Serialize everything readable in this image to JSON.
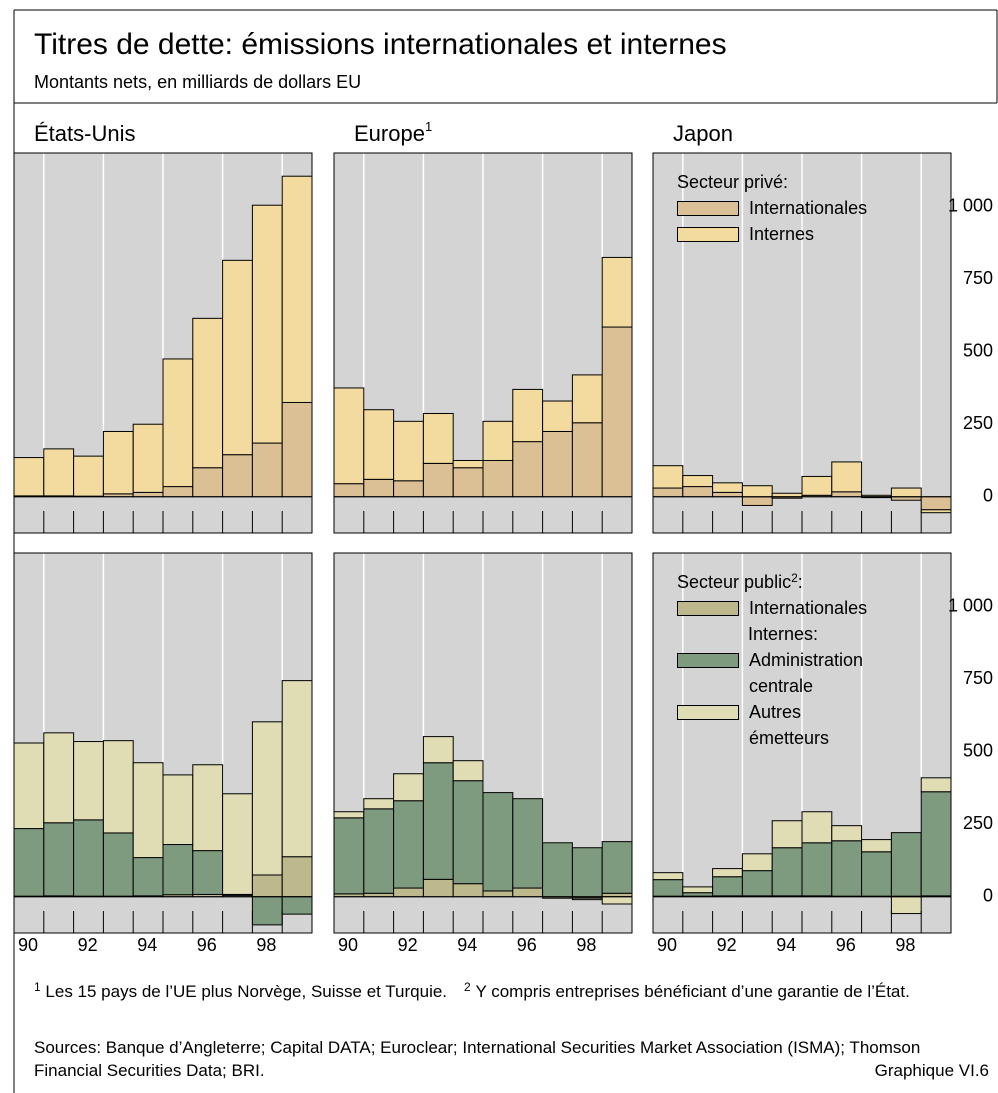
{
  "header": {
    "title": "Titres de dette: émissions internationales et internes",
    "subtitle": "Montants nets, en milliards de dollars EU"
  },
  "chart_data": [
    {
      "type": "bar",
      "stacked": true,
      "title": "États-Unis",
      "ylim": [
        -125,
        1185
      ],
      "series": [
        {
          "color": "#dcc095",
          "values": [
            3,
            3,
            2,
            10,
            15,
            35,
            100,
            145,
            185,
            325
          ]
        },
        {
          "color": "#f3dba0",
          "values": [
            132,
            162,
            138,
            215,
            235,
            440,
            515,
            670,
            820,
            780
          ]
        }
      ]
    },
    {
      "type": "bar",
      "stacked": true,
      "title": {
        "text": "Europe",
        "note": "1"
      },
      "ylim": [
        -125,
        1185
      ],
      "series": [
        {
          "color": "#dcc095",
          "values": [
            45,
            60,
            55,
            115,
            100,
            125,
            190,
            225,
            255,
            585
          ]
        },
        {
          "color": "#f3dba0",
          "values": [
            330,
            240,
            205,
            172,
            25,
            135,
            180,
            105,
            165,
            240
          ]
        }
      ]
    },
    {
      "type": "bar",
      "stacked": true,
      "title": "Japon",
      "ylim": [
        -125,
        1185
      ],
      "yticks": [
        0,
        250,
        500,
        750,
        {
          "value": 1000,
          "label": "1 000"
        }
      ],
      "legend_title": "Secteur privé:",
      "series": [
        {
          "name": "Internationales",
          "color": "#dcc095",
          "values": [
            30,
            35,
            15,
            -30,
            -5,
            5,
            17,
            -3,
            -12,
            -45
          ]
        },
        {
          "name": "Internes",
          "color": "#f3dba0",
          "values": [
            77,
            38,
            33,
            38,
            12,
            65,
            103,
            5,
            30,
            -10
          ]
        }
      ]
    },
    {
      "type": "bar",
      "stacked": true,
      "ylim": [
        -125,
        1185
      ],
      "categories": [
        "90",
        null,
        "92",
        null,
        "94",
        null,
        "96",
        null,
        "98",
        null
      ],
      "series": [
        {
          "color": "#bdb98c",
          "values": [
            2,
            3,
            2,
            2,
            3,
            7,
            8,
            5,
            75,
            138
          ]
        },
        {
          "color": "#7e9a7f",
          "values": [
            233,
            252,
            263,
            218,
            132,
            173,
            151,
            3,
            -97,
            -60
          ]
        },
        {
          "color": "#e0dcb4",
          "values": [
            295,
            310,
            270,
            318,
            327,
            240,
            296,
            347,
            528,
            607
          ]
        }
      ]
    },
    {
      "type": "bar",
      "stacked": true,
      "ylim": [
        -125,
        1185
      ],
      "categories": [
        "90",
        null,
        "92",
        null,
        "94",
        null,
        "96",
        null,
        "98",
        null
      ],
      "series": [
        {
          "color": "#bdb98c",
          "values": [
            10,
            12,
            30,
            60,
            45,
            20,
            30,
            -5,
            -5,
            12
          ]
        },
        {
          "color": "#7e9a7f",
          "values": [
            262,
            291,
            301,
            402,
            355,
            339,
            308,
            186,
            169,
            178
          ]
        },
        {
          "color": "#e0dcb4",
          "values": [
            21,
            35,
            93,
            90,
            69,
            0,
            0,
            0,
            -5,
            -25
          ]
        }
      ]
    },
    {
      "type": "bar",
      "stacked": true,
      "ylim": [
        -125,
        1185
      ],
      "yticks": [
        0,
        250,
        500,
        750,
        {
          "value": 1000,
          "label": "1 000"
        }
      ],
      "categories": [
        "90",
        null,
        "92",
        null,
        "94",
        null,
        "96",
        null,
        "98",
        null
      ],
      "legend_title": {
        "text": "Secteur public",
        "note": "2",
        "suffix": ":"
      },
      "legend_subtitle": "Internes:",
      "series": [
        {
          "name": "Internationales",
          "color": "#bdb98c",
          "values": [
            2,
            2,
            3,
            3,
            3,
            3,
            2,
            2,
            2,
            3
          ]
        },
        {
          "name": "Administration centrale",
          "color": "#7e9a7f",
          "values": [
            57,
            12,
            66,
            87,
            166,
            183,
            191,
            153,
            219,
            359
          ]
        },
        {
          "name": "Autres émetteurs",
          "color": "#e0dcb4",
          "values": [
            24,
            20,
            28,
            58,
            93,
            107,
            52,
            42,
            -58,
            48
          ]
        }
      ]
    }
  ],
  "footnotes": [
    {
      "mark": "1",
      "text": "Les 15 pays de l’UE plus Norvège, Suisse et Turquie."
    },
    {
      "mark": "2",
      "text": "Y compris entreprises bénéficiant d’une garantie de l’État."
    }
  ],
  "sources": "Sources: Banque d’Angleterre; Capital DATA; Euroclear; International Securities Market Association (ISMA); Thomson Financial Securities Data; BRI.",
  "figure_id": "Graphique VI.6"
}
